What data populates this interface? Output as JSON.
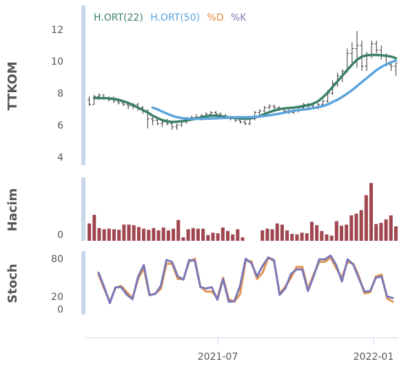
{
  "chart_data": [
    {
      "type": "ohlc",
      "ylabel": "TTKOM",
      "ylim": [
        3.5,
        13.5
      ],
      "yticks": [
        4,
        6,
        8,
        10,
        12
      ],
      "legend": [
        {
          "name": "H.ORT(22)",
          "color": "#3a7f68"
        },
        {
          "name": "H.ORT(50)",
          "color": "#5ba3dc"
        },
        {
          "name": "%D",
          "color": "#e08a3c"
        },
        {
          "name": "%K",
          "color": "#7b78b8"
        }
      ],
      "colors": {
        "bars": "#333333",
        "ma22": "#3a7f68",
        "ma50": "#5ba3dc"
      },
      "bars": [
        [
          7.6,
          7.8,
          7.2,
          7.3
        ],
        [
          7.3,
          7.9,
          7.3,
          7.8
        ],
        [
          7.8,
          8.0,
          7.6,
          7.9
        ],
        [
          7.9,
          7.9,
          7.6,
          7.7
        ],
        [
          7.7,
          7.8,
          7.5,
          7.6
        ],
        [
          7.6,
          7.8,
          7.4,
          7.5
        ],
        [
          7.5,
          7.6,
          7.3,
          7.4
        ],
        [
          7.4,
          7.5,
          7.2,
          7.3
        ],
        [
          7.3,
          7.4,
          7.0,
          7.2
        ],
        [
          7.2,
          7.4,
          7.0,
          7.3
        ],
        [
          7.3,
          7.4,
          6.9,
          7.1
        ],
        [
          7.1,
          7.2,
          6.7,
          6.9
        ],
        [
          6.9,
          7.0,
          5.8,
          6.4
        ],
        [
          6.4,
          6.5,
          6.0,
          6.3
        ],
        [
          6.3,
          6.4,
          6.0,
          6.1
        ],
        [
          6.1,
          6.3,
          5.9,
          6.2
        ],
        [
          6.2,
          6.4,
          6.0,
          6.1
        ],
        [
          6.1,
          6.2,
          5.7,
          5.9
        ],
        [
          5.9,
          6.1,
          5.7,
          6.0
        ],
        [
          6.0,
          6.3,
          5.9,
          6.2
        ],
        [
          6.2,
          6.5,
          6.1,
          6.4
        ],
        [
          6.4,
          6.6,
          6.3,
          6.5
        ],
        [
          6.5,
          6.7,
          6.4,
          6.5
        ],
        [
          6.5,
          6.7,
          6.3,
          6.6
        ],
        [
          6.6,
          6.8,
          6.5,
          6.7
        ],
        [
          6.7,
          6.9,
          6.6,
          6.8
        ],
        [
          6.8,
          6.9,
          6.6,
          6.7
        ],
        [
          6.7,
          6.8,
          6.5,
          6.6
        ],
        [
          6.6,
          6.7,
          6.4,
          6.5
        ],
        [
          6.5,
          6.6,
          6.3,
          6.4
        ],
        [
          6.4,
          6.5,
          6.2,
          6.3
        ],
        [
          6.3,
          6.4,
          6.1,
          6.2
        ],
        [
          6.2,
          6.3,
          6.0,
          6.1
        ],
        [
          6.1,
          6.5,
          6.0,
          6.4
        ],
        [
          6.4,
          6.9,
          6.3,
          6.8
        ],
        [
          6.8,
          7.0,
          6.6,
          6.9
        ],
        [
          6.9,
          7.2,
          6.8,
          7.1
        ],
        [
          7.1,
          7.3,
          7.0,
          7.2
        ],
        [
          7.2,
          7.3,
          7.0,
          7.1
        ],
        [
          7.1,
          7.2,
          6.9,
          7.0
        ],
        [
          7.0,
          7.1,
          6.8,
          6.9
        ],
        [
          6.9,
          7.0,
          6.7,
          6.8
        ],
        [
          6.8,
          7.0,
          6.7,
          6.9
        ],
        [
          6.9,
          7.2,
          6.8,
          7.1
        ],
        [
          7.1,
          7.4,
          7.0,
          7.3
        ],
        [
          7.3,
          7.4,
          7.0,
          7.2
        ],
        [
          7.2,
          7.3,
          7.0,
          7.1
        ],
        [
          7.1,
          7.4,
          7.0,
          7.3
        ],
        [
          7.3,
          7.6,
          7.2,
          7.5
        ],
        [
          7.5,
          8.2,
          7.4,
          8.0
        ],
        [
          8.0,
          8.8,
          7.9,
          8.6
        ],
        [
          8.6,
          9.3,
          8.4,
          9.1
        ],
        [
          9.1,
          9.5,
          8.7,
          9.4
        ],
        [
          9.4,
          10.8,
          9.3,
          10.5
        ],
        [
          10.5,
          11.2,
          9.8,
          10.8
        ],
        [
          10.8,
          11.9,
          9.6,
          11.0
        ],
        [
          11.0,
          11.3,
          9.4,
          9.7
        ],
        [
          9.7,
          10.6,
          9.4,
          10.4
        ],
        [
          10.4,
          11.3,
          10.2,
          11.1
        ],
        [
          11.1,
          11.3,
          10.5,
          10.7
        ],
        [
          10.7,
          11.0,
          10.1,
          10.4
        ],
        [
          10.4,
          10.5,
          9.7,
          9.8
        ],
        [
          9.8,
          9.9,
          9.4,
          9.7
        ],
        [
          9.7,
          9.9,
          9.1,
          9.9
        ]
      ],
      "series": [
        {
          "name": "H.ORT(22)",
          "start_index": 1,
          "values": [
            7.7,
            7.7,
            7.7,
            7.68,
            7.65,
            7.6,
            7.5,
            7.4,
            7.25,
            7.1,
            6.95,
            6.8,
            6.6,
            6.45,
            6.32,
            6.25,
            6.2,
            6.22,
            6.25,
            6.3,
            6.35,
            6.42,
            6.5,
            6.55,
            6.6,
            6.6,
            6.57,
            6.52,
            6.48,
            6.45,
            6.42,
            6.4,
            6.42,
            6.48,
            6.58,
            6.7,
            6.82,
            6.92,
            7.0,
            7.05,
            7.08,
            7.1,
            7.15,
            7.2,
            7.25,
            7.35,
            7.5,
            7.75,
            8.05,
            8.4,
            8.75,
            9.1,
            9.45,
            9.8,
            10.1,
            10.3,
            10.38,
            10.4,
            10.4,
            10.38,
            10.35,
            10.3,
            10.2
          ]
        },
        {
          "name": "H.ORT(50)",
          "start_index": 13,
          "values": [
            7.1,
            7.0,
            6.85,
            6.72,
            6.6,
            6.5,
            6.45,
            6.42,
            6.4,
            6.4,
            6.4,
            6.41,
            6.42,
            6.43,
            6.45,
            6.46,
            6.48,
            6.5,
            6.5,
            6.5,
            6.5,
            6.52,
            6.55,
            6.58,
            6.62,
            6.67,
            6.72,
            6.78,
            6.84,
            6.9,
            6.95,
            6.98,
            7.02,
            7.07,
            7.13,
            7.2,
            7.3,
            7.45,
            7.6,
            7.78,
            7.98,
            8.2,
            8.45,
            8.7,
            8.95,
            9.2,
            9.45,
            9.65,
            9.8,
            9.95,
            10.05
          ]
        }
      ]
    },
    {
      "type": "bar",
      "ylabel": "Hacim",
      "yticks": [
        0
      ],
      "color": "#a0464f",
      "values": [
        30,
        45,
        22,
        20,
        21,
        20,
        19,
        28,
        28,
        27,
        24,
        21,
        19,
        22,
        18,
        23,
        18,
        21,
        36,
        6,
        20,
        22,
        21,
        21,
        10,
        14,
        13,
        23,
        17,
        11,
        20,
        6,
        0,
        0,
        0,
        18,
        21,
        20,
        30,
        28,
        18,
        12,
        11,
        14,
        13,
        33,
        27,
        17,
        11,
        9,
        34,
        26,
        28,
        44,
        47,
        53,
        79,
        100,
        29,
        31,
        37,
        44,
        25
      ]
    },
    {
      "type": "line",
      "ylabel": "Stoch",
      "ylim": [
        -8,
        92
      ],
      "yticks": [
        80,
        20,
        0
      ],
      "series": [
        {
          "name": "%D",
          "color": "#e08a3c",
          "values": [
            55,
            32,
            12,
            34,
            37,
            27,
            18,
            48,
            65,
            22,
            25,
            32,
            72,
            72,
            48,
            48,
            75,
            80,
            36,
            28,
            28,
            18,
            50,
            16,
            12,
            24,
            77,
            76,
            48,
            58,
            82,
            76,
            25,
            36,
            50,
            67,
            67,
            32,
            55,
            75,
            75,
            82,
            65,
            50,
            75,
            72,
            52,
            25,
            27,
            52,
            55,
            17,
            12
          ]
        },
        {
          "name": "%K",
          "color": "#7b78b8",
          "values": [
            58,
            35,
            10,
            35,
            35,
            23,
            16,
            52,
            70,
            23,
            24,
            37,
            78,
            75,
            52,
            47,
            78,
            77,
            35,
            33,
            35,
            15,
            48,
            12,
            13,
            37,
            80,
            73,
            52,
            69,
            82,
            78,
            23,
            33,
            56,
            63,
            63,
            29,
            52,
            79,
            79,
            85,
            70,
            44,
            79,
            71,
            49,
            28,
            29,
            50,
            52,
            20,
            18
          ]
        }
      ]
    }
  ],
  "x_axis": {
    "tick_labels": [
      "2021-07",
      "2022-01"
    ]
  }
}
